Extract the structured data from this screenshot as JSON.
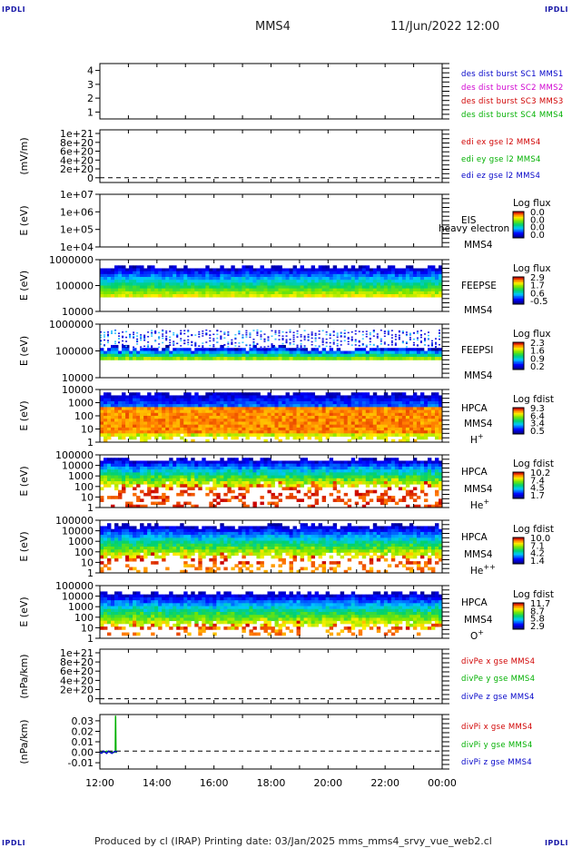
{
  "header": {
    "corner_label": "IPDLI",
    "spacecraft": "MMS4",
    "datetime": "11/Jun/2022 12:00"
  },
  "footer": {
    "text": "Produced by cl (IRAP)   Printing date: 03/Jan/2025   mms_mms4_srvy_vue_web2.cl"
  },
  "chart_data": [
    {
      "type": "line",
      "panel": "des-dist-burst",
      "ylabel": "",
      "ylim": [
        0.5,
        4.5
      ],
      "yticks": [
        "1",
        "2",
        "3",
        "4"
      ],
      "legend": [
        {
          "label": "des dist burst SC1 MMS1",
          "color": "#0000c8"
        },
        {
          "label": "des dist burst SC2 MMS2",
          "color": "#d000d0"
        },
        {
          "label": "des dist burst SC3 MMS3",
          "color": "#d00000"
        },
        {
          "label": "des dist burst SC4 MMS4",
          "color": "#00b000"
        }
      ],
      "series": []
    },
    {
      "type": "line",
      "panel": "edi-e-field",
      "ylabel": "(mV/m)",
      "ylim": [
        -3e+20,
        1.1e+21
      ],
      "yticks": [
        "1e+21",
        "8e+20",
        "6e+20",
        "4e+20",
        "2e+20",
        "0"
      ],
      "legend": [
        {
          "label": "edi ex gse l2 MMS4",
          "color": "#d00000"
        },
        {
          "label": "edi ey gse l2 MMS4",
          "color": "#00b000"
        },
        {
          "label": "edi ez gse l2 MMS4",
          "color": "#0000c8"
        }
      ],
      "zero_line": true,
      "series": []
    },
    {
      "type": "heatmap",
      "panel": "eis",
      "ylabel": "E (eV)",
      "yscale": "log",
      "yticks": [
        "1e+07",
        "1e+06",
        "1e+05",
        "1e+04"
      ],
      "right_labels": [
        "EIS",
        "MMS4"
      ],
      "overlay_text": "heavy electron to",
      "colorbar": {
        "title": "Log flux",
        "ticks": [
          "0.0",
          "0.0",
          "0.0",
          "0.0"
        ]
      },
      "filled": false
    },
    {
      "type": "heatmap",
      "panel": "feepse",
      "ylabel": "E (eV)",
      "yscale": "log",
      "yticks": [
        "1000000",
        "100000",
        "10000"
      ],
      "right_labels": [
        "FEEPSE",
        "MMS4"
      ],
      "colorbar": {
        "title": "Log flux",
        "ticks": [
          "2.9",
          "1.7",
          "0.6",
          "-0.5"
        ]
      },
      "filled": true
    },
    {
      "type": "heatmap",
      "panel": "feepsi",
      "ylabel": "E (eV)",
      "yscale": "log",
      "yticks": [
        "1000000",
        "100000",
        "10000"
      ],
      "right_labels": [
        "FEEPSI",
        "MMS4"
      ],
      "colorbar": {
        "title": "Log flux",
        "ticks": [
          "2.3",
          "1.6",
          "0.9",
          "0.2"
        ]
      },
      "filled": true
    },
    {
      "type": "heatmap",
      "panel": "hpca-h",
      "ylabel": "E (eV)",
      "yscale": "log",
      "yticks": [
        "10000",
        "1000",
        "100",
        "10",
        "1"
      ],
      "right_labels": [
        "HPCA",
        "MMS4"
      ],
      "species": {
        "base": "H",
        "sup": "+"
      },
      "colorbar": {
        "title": "Log fdist",
        "ticks": [
          "9.3",
          "6.4",
          "3.4",
          "0.5"
        ]
      },
      "filled": true
    },
    {
      "type": "heatmap",
      "panel": "hpca-he",
      "ylabel": "E (eV)",
      "yscale": "log",
      "yticks": [
        "100000",
        "10000",
        "1000",
        "100",
        "10",
        "1"
      ],
      "right_labels": [
        "HPCA",
        "MMS4"
      ],
      "species": {
        "base": "He",
        "sup": "+"
      },
      "colorbar": {
        "title": "Log fdist",
        "ticks": [
          "10.2",
          "7.4",
          "4.5",
          "1.7"
        ]
      },
      "filled": true
    },
    {
      "type": "heatmap",
      "panel": "hpca-he2",
      "ylabel": "E (eV)",
      "yscale": "log",
      "yticks": [
        "100000",
        "10000",
        "1000",
        "100",
        "10",
        "1"
      ],
      "right_labels": [
        "HPCA",
        "MMS4"
      ],
      "species": {
        "base": "He",
        "sup": "++"
      },
      "colorbar": {
        "title": "Log fdist",
        "ticks": [
          "10.0",
          "7.1",
          "4.2",
          "1.4"
        ]
      },
      "filled": true
    },
    {
      "type": "heatmap",
      "panel": "hpca-o",
      "ylabel": "E (eV)",
      "yscale": "log",
      "yticks": [
        "100000",
        "10000",
        "1000",
        "100",
        "10",
        "1"
      ],
      "right_labels": [
        "HPCA",
        "MMS4"
      ],
      "species": {
        "base": "O",
        "sup": "+"
      },
      "colorbar": {
        "title": "Log fdist",
        "ticks": [
          "11.7",
          "8.7",
          "5.8",
          "2.9"
        ]
      },
      "filled": true
    },
    {
      "type": "line",
      "panel": "divpe",
      "ylabel": "(nPa/km)",
      "ylim": [
        -3e+20,
        1.1e+21
      ],
      "yticks": [
        "1e+21",
        "8e+20",
        "6e+20",
        "4e+20",
        "2e+20",
        "0"
      ],
      "legend": [
        {
          "label": "divPe x gse MMS4",
          "color": "#d00000"
        },
        {
          "label": "divPe y gse MMS4",
          "color": "#00b000"
        },
        {
          "label": "divPe z gse MMS4",
          "color": "#0000c8"
        }
      ],
      "zero_line": true,
      "series": []
    },
    {
      "type": "line",
      "panel": "divpi",
      "ylabel": "(nPa/km)",
      "ylim": [
        -0.016,
        0.036
      ],
      "yticks": [
        "0.03",
        "0.02",
        "0.01",
        "0.00",
        "-0.01"
      ],
      "legend": [
        {
          "label": "divPi x gse MMS4",
          "color": "#d00000"
        },
        {
          "label": "divPi y gse MMS4",
          "color": "#00b000"
        },
        {
          "label": "divPi z gse MMS4",
          "color": "#0000c8"
        }
      ],
      "zero_line": true,
      "series": [
        {
          "color": "#00b000",
          "x": [
            0.0,
            0.1,
            0.2,
            0.3,
            0.35,
            0.4,
            0.45,
            0.46,
            0.47,
            0.5
          ],
          "values": [
            0.0,
            0.0,
            0.001,
            0.0,
            0.0,
            0.0,
            0.0,
            0.035,
            0.0,
            0.0
          ]
        },
        {
          "color": "#0000c8",
          "x": [
            0.0,
            0.05,
            0.1,
            0.15,
            0.2,
            0.25,
            0.3,
            0.35,
            0.4,
            0.45,
            0.5
          ],
          "values": [
            0.0,
            -0.001,
            0.001,
            0.0,
            -0.001,
            0.001,
            0.0,
            -0.001,
            0.0,
            0.001,
            0.0
          ]
        }
      ]
    }
  ],
  "time_axis": {
    "range_hours": [
      12,
      24
    ],
    "ticks": [
      "12:00",
      "14:00",
      "16:00",
      "18:00",
      "20:00",
      "22:00",
      "00:00"
    ]
  }
}
